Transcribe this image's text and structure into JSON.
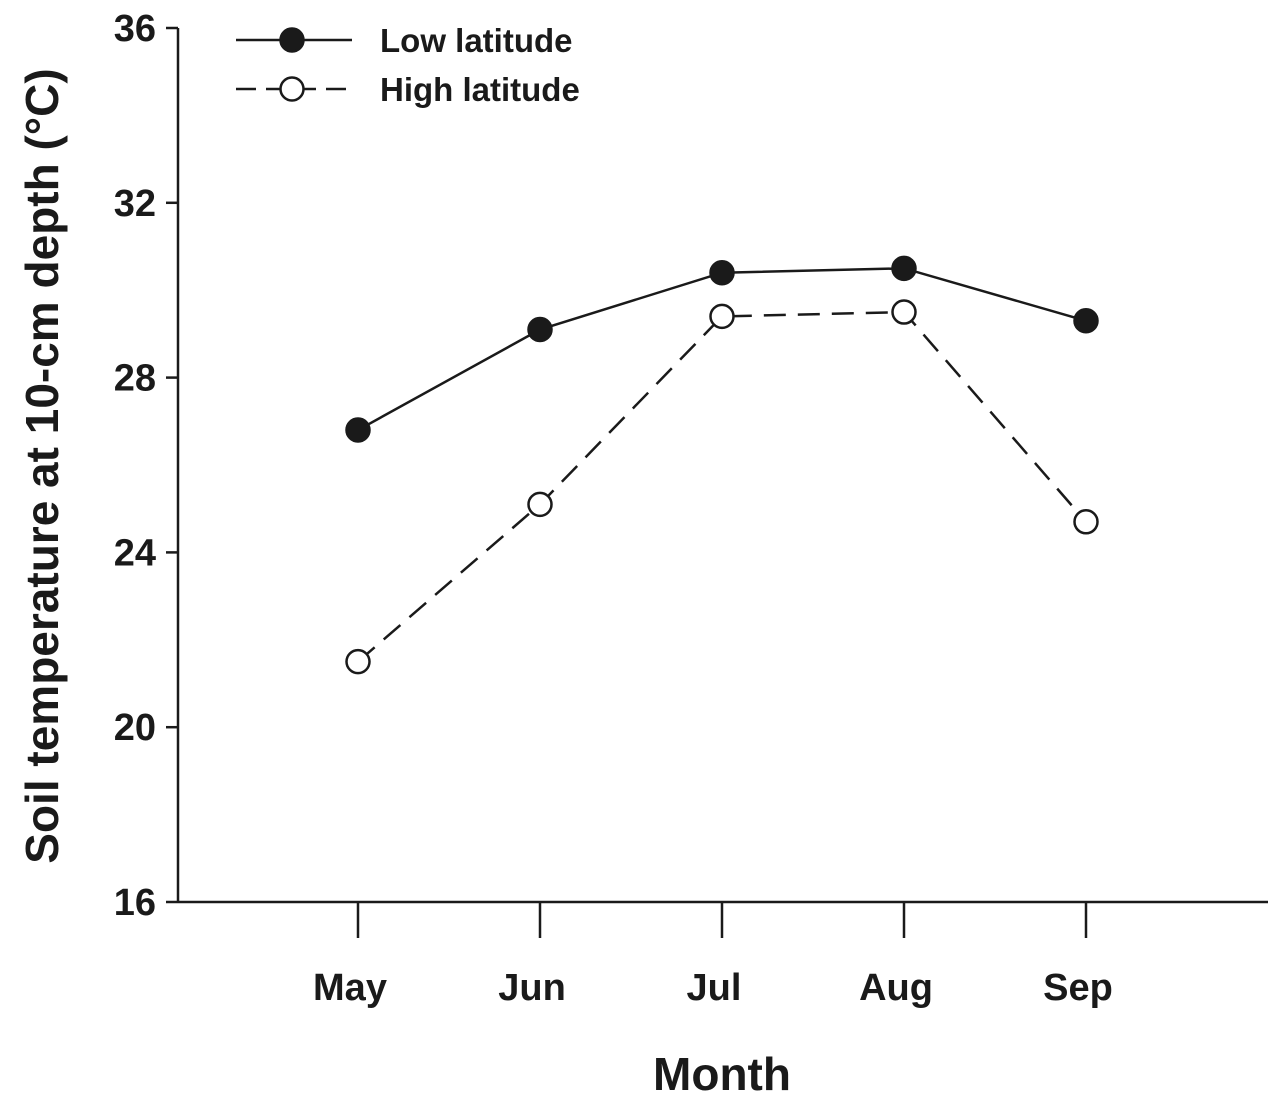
{
  "chart_data": {
    "type": "line",
    "categories": [
      "May",
      "Jun",
      "Jul",
      "Aug",
      "Sep"
    ],
    "series": [
      {
        "name": "Low latitude",
        "values": [
          26.8,
          29.1,
          30.4,
          30.5,
          29.3
        ],
        "marker": "filled",
        "line_style": "solid"
      },
      {
        "name": "High latitude",
        "values": [
          21.5,
          25.1,
          29.4,
          29.5,
          24.7
        ],
        "marker": "open",
        "line_style": "dashed"
      }
    ],
    "xlabel": "Month",
    "ylabel": "Soil temperature at 10-cm depth (°C)",
    "ylim": [
      16,
      36
    ],
    "yticks": [
      16,
      20,
      24,
      28,
      32,
      36
    ],
    "grid": false,
    "legend_position": "top-left",
    "colors": {
      "line": "#1a1a1a",
      "open_marker_fill": "#ffffff"
    }
  }
}
